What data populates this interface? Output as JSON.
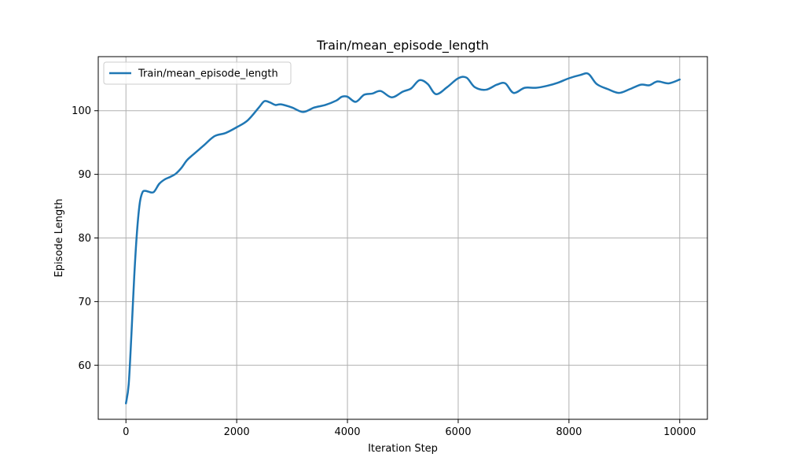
{
  "chart_data": {
    "type": "line",
    "title": "Train/mean_episode_length",
    "xlabel": "Iteration Step",
    "ylabel": "Episode Length",
    "xlim": [
      -500,
      10500
    ],
    "ylim": [
      51.5,
      108.5
    ],
    "xticks": [
      0,
      2000,
      4000,
      6000,
      8000,
      10000
    ],
    "yticks": [
      60,
      70,
      80,
      90,
      100
    ],
    "grid": true,
    "legend_position": "top-left",
    "colors": {
      "series": "#1f77b4",
      "grid": "#b0b0b0",
      "axis": "#000000"
    },
    "series": [
      {
        "name": "Train/mean_episode_length",
        "x": [
          0,
          50,
          100,
          150,
          200,
          250,
          300,
          350,
          400,
          500,
          600,
          700,
          800,
          900,
          1000,
          1100,
          1200,
          1400,
          1600,
          1800,
          2000,
          2200,
          2400,
          2500,
          2600,
          2700,
          2800,
          3000,
          3200,
          3400,
          3600,
          3800,
          3900,
          4000,
          4150,
          4300,
          4450,
          4600,
          4800,
          5000,
          5150,
          5300,
          5450,
          5600,
          5800,
          6000,
          6150,
          6300,
          6500,
          6700,
          6850,
          7000,
          7200,
          7400,
          7600,
          7800,
          8000,
          8200,
          8350,
          8500,
          8700,
          8900,
          9100,
          9300,
          9450,
          9600,
          9800,
          10000
        ],
        "y": [
          54,
          57,
          65,
          74,
          81,
          85.5,
          87.2,
          87.4,
          87.3,
          87.2,
          88.5,
          89.2,
          89.6,
          90.1,
          91,
          92.2,
          93,
          94.5,
          96,
          96.5,
          97.4,
          98.5,
          100.5,
          101.5,
          101.3,
          100.9,
          101,
          100.5,
          99.8,
          100.5,
          100.9,
          101.6,
          102.2,
          102.2,
          101.4,
          102.5,
          102.7,
          103.1,
          102.1,
          103,
          103.5,
          104.8,
          104.2,
          102.6,
          103.7,
          105.1,
          105.2,
          103.7,
          103.3,
          104.1,
          104.3,
          102.8,
          103.6,
          103.6,
          103.9,
          104.4,
          105.1,
          105.6,
          105.8,
          104.2,
          103.4,
          102.8,
          103.4,
          104.1,
          104,
          104.6,
          104.3,
          104.9
        ]
      }
    ]
  }
}
